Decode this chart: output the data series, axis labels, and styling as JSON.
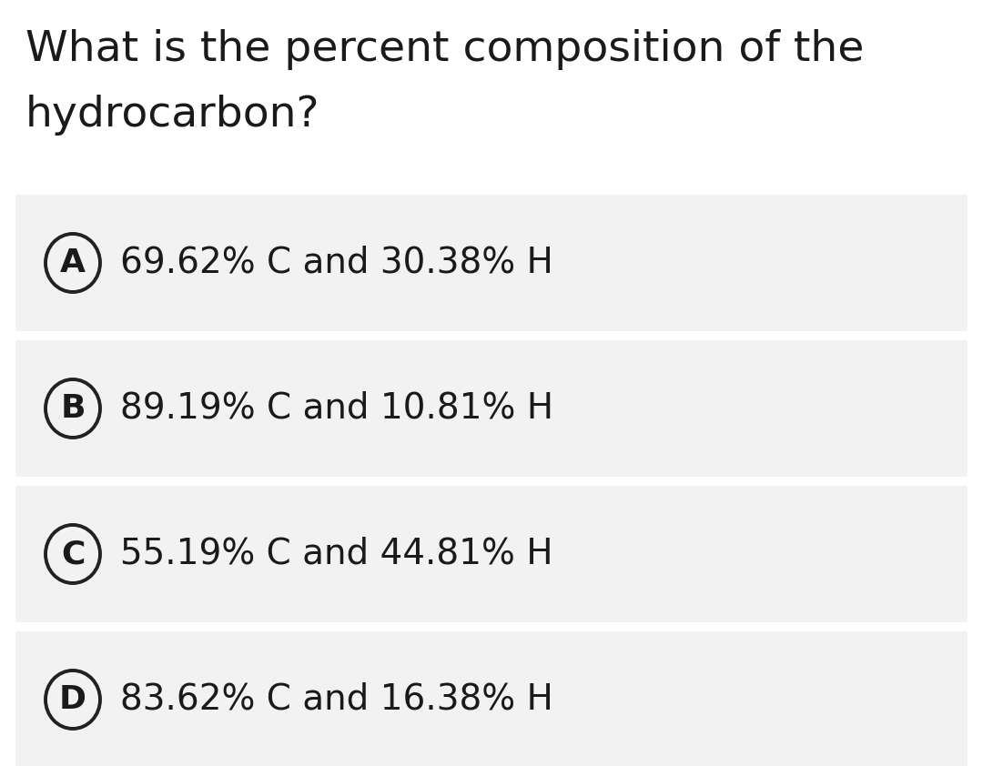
{
  "question_line1": "What is the percent composition of the",
  "question_line2": "hydrocarbon?",
  "options": [
    {
      "label": "A",
      "text": "69.62% C and 30.38% H"
    },
    {
      "label": "B",
      "text": "89.19% C and 10.81% H"
    },
    {
      "label": "C",
      "text": "55.19% C and 44.81% H"
    },
    {
      "label": "D",
      "text": "83.62% C and 16.38% H"
    }
  ],
  "background_color": "#ffffff",
  "option_bg_color": "#f2f2f2",
  "text_color": "#1a1a1a",
  "circle_color": "#222222",
  "question_fontsize": 34,
  "option_fontsize": 28,
  "label_fontsize": 26,
  "fig_width": 10.8,
  "fig_height": 8.42,
  "dpi": 100
}
